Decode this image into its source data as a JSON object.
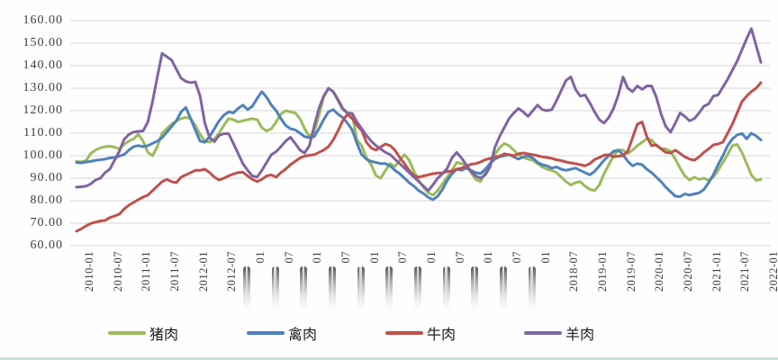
{
  "chart_data": {
    "type": "line",
    "title": "",
    "xlabel": "",
    "ylabel": "",
    "frequency": "monthly",
    "x_start": "2010-01",
    "x_end": "2022-01",
    "ylim": [
      60,
      160
    ],
    "y_step": 10,
    "grid": "horizontal",
    "legend_position": "bottom",
    "y_ticks": [
      "160.00",
      "150.00",
      "140.00",
      "130.00",
      "120.00",
      "110.00",
      "100.00",
      "90.00",
      "80.00",
      "70.00",
      "60.00"
    ],
    "x_ticks": [
      {
        "label": "2010-01",
        "smeared": false
      },
      {
        "label": "2010-07",
        "smeared": false
      },
      {
        "label": "2011-01",
        "smeared": false
      },
      {
        "label": "2011-07",
        "smeared": false
      },
      {
        "label": "2012-01",
        "smeared": false
      },
      {
        "label": "2012-07",
        "smeared": false
      },
      {
        "label": "2013-01",
        "smeared": true
      },
      {
        "label": "2013-07",
        "smeared": true
      },
      {
        "label": "2014-01",
        "smeared": true
      },
      {
        "label": "2014-07",
        "smeared": true
      },
      {
        "label": "2015-01",
        "smeared": true
      },
      {
        "label": "2015-07",
        "smeared": true
      },
      {
        "label": "2016-01",
        "smeared": true
      },
      {
        "label": "2016-07",
        "smeared": true
      },
      {
        "label": "2017-01",
        "smeared": true
      },
      {
        "label": "2017-07",
        "smeared": true
      },
      {
        "label": "2018-01",
        "smeared": true
      },
      {
        "label": "2018-07",
        "smeared": false
      },
      {
        "label": "2019-01",
        "smeared": false
      },
      {
        "label": "2019-07",
        "smeared": false
      },
      {
        "label": "2020-01",
        "smeared": false
      },
      {
        "label": "2020-07",
        "smeared": false
      },
      {
        "label": "2021-01",
        "smeared": false
      },
      {
        "label": "2021-07",
        "smeared": false
      },
      {
        "label": "2022-01",
        "smeared": false
      }
    ],
    "series": [
      {
        "name": "猪肉",
        "color": "#9BBB59",
        "values": [
          97.5,
          97.2,
          97.8,
          101,
          102.5,
          103.5,
          104,
          104.2,
          103.8,
          103,
          105,
          106.5,
          107.5,
          109.5,
          106.5,
          101.5,
          100,
          104,
          110,
          112,
          114,
          115.5,
          116.5,
          117,
          116.5,
          113.5,
          109.5,
          106.5,
          106,
          107.5,
          110,
          113.5,
          116.5,
          116,
          115,
          115.5,
          116,
          116.5,
          116,
          112.5,
          111,
          112,
          115,
          118.5,
          120,
          119.5,
          119,
          116.5,
          112,
          108.5,
          110.5,
          118,
          126,
          130,
          128.5,
          124.5,
          120.5,
          119,
          118.5,
          107,
          104.5,
          99,
          96,
          91.2,
          90,
          93.5,
          96.5,
          95.2,
          97.9,
          100.5,
          98,
          93,
          89,
          86,
          83.5,
          82.5,
          84.5,
          87.5,
          90.5,
          93.5,
          97,
          96.5,
          95.5,
          92.5,
          89.5,
          88.5,
          92.5,
          96.5,
          100.5,
          103.5,
          105.5,
          104.5,
          102.5,
          100.5,
          99.2,
          98.5,
          98,
          96.5,
          95,
          94,
          93.5,
          92.5,
          90.5,
          88.5,
          87,
          88,
          88.5,
          86.5,
          85,
          84.5,
          87,
          92,
          96,
          100,
          102.5,
          102.5,
          101,
          102.5,
          104.5,
          106,
          107.5,
          107,
          104.5,
          103.2,
          103,
          101.9,
          98.5,
          94.5,
          91,
          89.2,
          90.5,
          89.5,
          90,
          89,
          90.5,
          93.5,
          97,
          100.5,
          104.5,
          105,
          101.5,
          96.5,
          91.5,
          89,
          89.5
        ]
      },
      {
        "name": "禽肉",
        "color": "#4F81BD",
        "values": [
          97,
          96.8,
          97.2,
          97.5,
          97.9,
          98.2,
          98.5,
          99,
          99.2,
          99.8,
          100.5,
          102.5,
          104,
          104.5,
          104,
          104.5,
          105.5,
          106.5,
          108,
          110.5,
          113,
          115.5,
          119.5,
          121.5,
          116.5,
          111.5,
          106.5,
          106,
          108.5,
          112,
          115.5,
          118,
          119.5,
          119,
          121,
          122.5,
          120.5,
          122,
          125.5,
          128.5,
          126,
          122.5,
          120,
          116.5,
          113.5,
          112,
          111.5,
          110,
          108.5,
          108,
          108.5,
          112,
          116,
          119.5,
          120.5,
          118.5,
          117,
          114.5,
          111.5,
          105.5,
          100.5,
          98.5,
          97.5,
          97,
          96.5,
          96.5,
          95.5,
          93.5,
          92,
          90,
          88,
          86.5,
          84.5,
          83.2,
          81.5,
          80.5,
          82,
          85,
          89,
          92,
          94,
          93.5,
          94.5,
          93.5,
          92.5,
          92,
          94,
          96.5,
          98.5,
          99.5,
          100,
          100.5,
          99.5,
          98.5,
          99.5,
          100,
          99,
          97,
          96,
          95.5,
          94.5,
          95,
          94,
          93.5,
          94,
          94.5,
          93.5,
          92.5,
          91.5,
          93,
          95.5,
          98,
          100,
          102,
          102.5,
          100.5,
          97.5,
          95.5,
          96.5,
          96,
          94,
          92.5,
          90.5,
          88.5,
          86,
          84,
          82,
          81.8,
          83,
          82.5,
          83,
          83.5,
          85,
          88,
          91.5,
          96,
          100,
          104.5,
          107.5,
          109.2,
          109.9,
          107.5,
          110,
          108.8,
          107
        ]
      },
      {
        "name": "牛肉",
        "color": "#C0504D",
        "values": [
          66.5,
          67.5,
          68.8,
          69.9,
          70.5,
          71,
          71.2,
          72.5,
          73.2,
          74,
          76.3,
          78,
          79.2,
          80.5,
          81.6,
          82.5,
          84.5,
          86.5,
          88.5,
          89.5,
          88.5,
          88,
          90.5,
          91.5,
          92.5,
          93.5,
          93.5,
          94,
          92.5,
          90.5,
          89.2,
          90,
          91,
          91.9,
          92.5,
          92.7,
          91,
          89.5,
          88.5,
          89.5,
          91,
          91.5,
          90.5,
          92.5,
          94,
          96,
          97.5,
          99,
          99.8,
          100.2,
          100.5,
          101.5,
          102.5,
          104,
          107,
          111,
          115.5,
          118.5,
          116.5,
          113.5,
          111.2,
          106,
          103.5,
          102.5,
          103.9,
          105.2,
          104.5,
          102.5,
          99.2,
          96.5,
          93.5,
          91.2,
          90.5,
          91,
          91.5,
          92,
          92.3,
          92.4,
          93,
          93.2,
          94,
          94.5,
          95.2,
          96.2,
          96.5,
          97.2,
          98.2,
          98.8,
          99.5,
          99.8,
          100.8,
          100.5,
          100,
          100.8,
          101.2,
          100.8,
          100.5,
          100,
          99.5,
          99.2,
          98.8,
          98.2,
          97.8,
          97.2,
          96.8,
          96.5,
          96,
          95.5,
          96.5,
          98.3,
          99.2,
          100.2,
          100.5,
          99.5,
          99.8,
          100,
          102,
          108,
          114,
          115,
          108.5,
          104.5,
          104.8,
          103,
          101.5,
          101.2,
          102.5,
          101,
          99.5,
          98.5,
          98,
          99.5,
          101.5,
          103,
          104.8,
          105.2,
          106,
          110,
          114,
          119,
          124,
          126.5,
          128.5,
          130,
          132.5
        ]
      },
      {
        "name": "羊肉",
        "color": "#8064A2",
        "values": [
          86,
          86.2,
          86.5,
          87.5,
          89.2,
          90,
          92.5,
          94,
          97.9,
          102,
          107.2,
          109.5,
          110.5,
          110.8,
          111,
          115,
          124,
          135,
          145.5,
          144,
          142.5,
          138.5,
          134.5,
          133,
          132.5,
          132.8,
          126.5,
          114.5,
          108,
          106.3,
          109,
          109.8,
          109.8,
          105.5,
          101,
          96.5,
          93.5,
          91,
          90.5,
          93.5,
          97,
          100.5,
          101.8,
          104,
          106.5,
          108.2,
          105.5,
          102.5,
          101.2,
          104.5,
          113,
          121,
          126.5,
          129.9,
          128.5,
          125,
          121,
          119,
          118.8,
          115,
          112,
          109,
          106.5,
          104.5,
          103,
          101.5,
          100.5,
          98.5,
          96.5,
          94.5,
          92.5,
          90.5,
          88.5,
          86.5,
          84.5,
          87,
          90,
          92,
          94.5,
          99,
          101.5,
          99,
          96,
          93,
          91,
          90,
          91.5,
          95,
          103.5,
          108.5,
          112.5,
          116.5,
          119,
          121,
          119.5,
          117.5,
          120,
          122.5,
          120.5,
          120,
          120.5,
          124.5,
          129,
          133.5,
          135,
          129.5,
          126.5,
          127,
          123.5,
          119.5,
          116,
          114.5,
          117,
          121,
          127,
          135,
          130,
          128.5,
          131,
          129.5,
          131,
          131,
          126,
          118.5,
          113,
          110.5,
          114.5,
          119,
          117.5,
          115.5,
          116.5,
          119,
          122,
          123,
          126.5,
          127,
          130.5,
          134,
          138,
          142,
          147,
          152,
          156.5,
          149,
          141.5
        ]
      }
    ],
    "grid_color": "#d6d6d6",
    "label_color": "#3f3f3f"
  }
}
